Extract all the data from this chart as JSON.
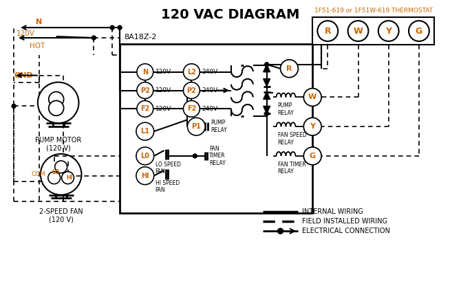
{
  "title": "120 VAC DIAGRAM",
  "bg_color": "#ffffff",
  "orange_color": "#cc6600",
  "black_color": "#000000",
  "thermostat_label": "1F51-619 or 1F51W-619 THERMOSTAT",
  "thermostat_terminals": [
    "R",
    "W",
    "Y",
    "G"
  ],
  "control_box_label": "8A18Z-2",
  "left_terminals": [
    "N",
    "P2",
    "F2"
  ],
  "left_voltages": [
    "120V",
    "120V",
    "120V"
  ],
  "right_terminals": [
    "L2",
    "P2",
    "F2"
  ],
  "right_voltages": [
    "240V",
    "240V",
    "240V"
  ],
  "legend_items": [
    "INTERNAL WIRING",
    "FIELD INSTALLED WIRING",
    "ELECTRICAL CONNECTION"
  ],
  "pump_motor_label": "PUMP MOTOR\n(120 V)",
  "fan_label": "2-SPEED FAN\n(120 V)"
}
